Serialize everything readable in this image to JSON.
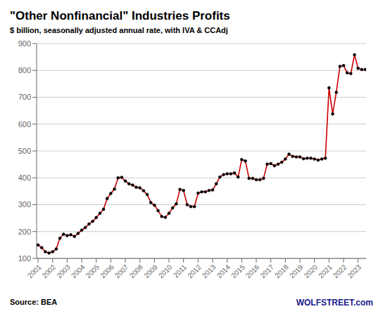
{
  "chart_data": {
    "type": "line",
    "title": "\"Other Nonfinancial\" Industries Profits",
    "subtitle": "$ billion, seasonally adjusted annual rate, with IVA & CCAdj",
    "annotations": [
      "Source: BEA",
      "WOLFSTREET.com"
    ],
    "color": "#cc0000",
    "marker": "circle",
    "grid": true,
    "x": [
      2001,
      2001.25,
      2001.5,
      2001.75,
      2002,
      2002.25,
      2002.5,
      2002.75,
      2003,
      2003.25,
      2003.5,
      2003.75,
      2004,
      2004.25,
      2004.5,
      2004.75,
      2005,
      2005.25,
      2005.5,
      2005.75,
      2006,
      2006.25,
      2006.5,
      2006.75,
      2007,
      2007.25,
      2007.5,
      2007.75,
      2008,
      2008.25,
      2008.5,
      2008.75,
      2009,
      2009.25,
      2009.5,
      2009.75,
      2010,
      2010.25,
      2010.5,
      2010.75,
      2011,
      2011.25,
      2011.5,
      2011.75,
      2012,
      2012.25,
      2012.5,
      2012.75,
      2013,
      2013.25,
      2013.5,
      2013.75,
      2014,
      2014.25,
      2014.5,
      2014.75,
      2015,
      2015.25,
      2015.5,
      2015.75,
      2016,
      2016.25,
      2016.5,
      2016.75,
      2017,
      2017.25,
      2017.5,
      2017.75,
      2018,
      2018.25,
      2018.5,
      2018.75,
      2019,
      2019.25,
      2019.5,
      2019.75,
      2020,
      2020.25,
      2020.5,
      2020.75,
      2021,
      2021.25,
      2021.5,
      2021.75,
      2022,
      2022.25,
      2022.5,
      2022.75,
      2023,
      2023.25,
      2023.5
    ],
    "values": [
      150,
      140,
      125,
      120,
      125,
      135,
      175,
      190,
      185,
      188,
      182,
      193,
      205,
      215,
      228,
      238,
      252,
      268,
      283,
      323,
      342,
      358,
      400,
      402,
      388,
      378,
      373,
      365,
      363,
      352,
      338,
      308,
      298,
      278,
      256,
      253,
      268,
      288,
      303,
      357,
      353,
      300,
      293,
      293,
      343,
      348,
      348,
      353,
      355,
      378,
      403,
      412,
      415,
      415,
      418,
      403,
      468,
      463,
      398,
      398,
      393,
      393,
      398,
      451,
      453,
      445,
      451,
      458,
      470,
      488,
      480,
      478,
      478,
      471,
      473,
      473,
      470,
      466,
      470,
      473,
      735,
      638,
      718,
      815,
      818,
      791,
      788,
      858,
      808,
      803,
      803
    ],
    "xlim": [
      2000.9,
      2023.55
    ],
    "xticks": [
      2001,
      2002,
      2003,
      2004,
      2005,
      2006,
      2007,
      2008,
      2009,
      2010,
      2011,
      2012,
      2013,
      2014,
      2015,
      2016,
      2017,
      2018,
      2019,
      2020,
      2021,
      2022,
      2023
    ],
    "ylim": [
      100,
      900
    ],
    "yticks": [
      100,
      200,
      300,
      400,
      500,
      600,
      700,
      800,
      900
    ]
  }
}
